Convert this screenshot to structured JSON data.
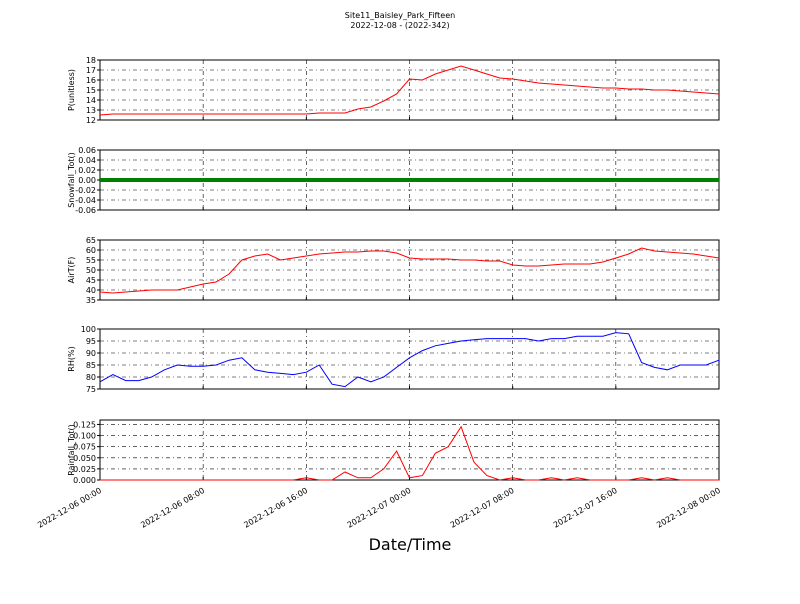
{
  "title": "Site11_Baisley_Park_Fifteen",
  "subtitle": "2022-12-08 - (2022-342)",
  "xlabel": "Date/Time",
  "x": [
    "2022-12-06 00:00",
    "2022-12-06 01:00",
    "2022-12-06 02:00",
    "2022-12-06 03:00",
    "2022-12-06 04:00",
    "2022-12-06 05:00",
    "2022-12-06 06:00",
    "2022-12-06 07:00",
    "2022-12-06 08:00",
    "2022-12-06 09:00",
    "2022-12-06 10:00",
    "2022-12-06 11:00",
    "2022-12-06 12:00",
    "2022-12-06 13:00",
    "2022-12-06 14:00",
    "2022-12-06 15:00",
    "2022-12-06 16:00",
    "2022-12-06 17:00",
    "2022-12-06 18:00",
    "2022-12-06 19:00",
    "2022-12-06 20:00",
    "2022-12-06 21:00",
    "2022-12-06 22:00",
    "2022-12-06 23:00",
    "2022-12-07 00:00",
    "2022-12-07 01:00",
    "2022-12-07 02:00",
    "2022-12-07 03:00",
    "2022-12-07 04:00",
    "2022-12-07 05:00",
    "2022-12-07 06:00",
    "2022-12-07 07:00",
    "2022-12-07 08:00",
    "2022-12-07 09:00",
    "2022-12-07 10:00",
    "2022-12-07 11:00",
    "2022-12-07 12:00",
    "2022-12-07 13:00",
    "2022-12-07 14:00",
    "2022-12-07 15:00",
    "2022-12-07 16:00",
    "2022-12-07 17:00",
    "2022-12-07 18:00",
    "2022-12-07 19:00",
    "2022-12-07 20:00",
    "2022-12-07 21:00",
    "2022-12-07 22:00",
    "2022-12-07 23:00",
    "2022-12-08 00:00"
  ],
  "xlim": [
    "2022-12-06 00:00",
    "2022-12-08 00:00"
  ],
  "xticks": [
    "2022-12-06 00:00",
    "2022-12-06 08:00",
    "2022-12-06 16:00",
    "2022-12-07 00:00",
    "2022-12-07 08:00",
    "2022-12-07 16:00",
    "2022-12-08 00:00"
  ],
  "grid": true,
  "chart_data": [
    {
      "type": "line",
      "ylabel": "P(unitless)",
      "ylim": [
        12,
        18
      ],
      "yticks": [
        12,
        13,
        14,
        15,
        16,
        17,
        18
      ],
      "series": [
        {
          "color": "#ff0000",
          "values": [
            12.5,
            12.6,
            12.6,
            12.6,
            12.6,
            12.6,
            12.6,
            12.6,
            12.6,
            12.6,
            12.6,
            12.6,
            12.6,
            12.6,
            12.6,
            12.6,
            12.6,
            12.7,
            12.7,
            12.7,
            13.1,
            13.3,
            13.9,
            14.6,
            16.1,
            16.0,
            16.6,
            17.0,
            17.4,
            17.0,
            16.6,
            16.2,
            16.1,
            15.9,
            15.7,
            15.6,
            15.5,
            15.4,
            15.3,
            15.2,
            15.2,
            15.1,
            15.1,
            15.0,
            15.0,
            14.9,
            14.8,
            14.7,
            14.6
          ]
        }
      ]
    },
    {
      "type": "line",
      "ylabel": "Snowfall_Tot()",
      "ylim": [
        -0.06,
        0.06
      ],
      "yticks": [
        -0.06,
        -0.04,
        -0.02,
        {
          "value": 0,
          "label": "0.00"
        },
        0.02,
        0.04,
        0.06
      ],
      "series": [
        {
          "color": "#008000",
          "values": [
            0,
            0,
            0,
            0,
            0,
            0,
            0,
            0,
            0,
            0,
            0,
            0,
            0,
            0,
            0,
            0,
            0,
            0,
            0,
            0,
            0,
            0,
            0,
            0,
            0,
            0,
            0,
            0,
            0,
            0,
            0,
            0,
            0,
            0,
            0,
            0,
            0,
            0,
            0,
            0,
            0,
            0,
            0,
            0,
            0,
            0,
            0,
            0,
            0
          ]
        }
      ]
    },
    {
      "type": "line",
      "ylabel": "AirT(F)",
      "ylim": [
        35,
        65
      ],
      "yticks": [
        35,
        40,
        45,
        50,
        55,
        60,
        65
      ],
      "series": [
        {
          "color": "#ff0000",
          "values": [
            39,
            38.5,
            39,
            39.5,
            40,
            40,
            40,
            41.5,
            43,
            44,
            48,
            55,
            57,
            58,
            55,
            56,
            57,
            58,
            58.5,
            59,
            59,
            59.5,
            59.5,
            58.5,
            56,
            55.5,
            55.5,
            55.5,
            55,
            55,
            54.5,
            54.5,
            52.5,
            52,
            52,
            52.5,
            53,
            53,
            53,
            54,
            56,
            58,
            61,
            59.5,
            59,
            58.5,
            58,
            57,
            56
          ]
        }
      ]
    },
    {
      "type": "line",
      "ylabel": "RH(%)",
      "ylim": [
        75,
        100
      ],
      "yticks": [
        75,
        80,
        85,
        90,
        95,
        100
      ],
      "series": [
        {
          "color": "#0000ff",
          "values": [
            78,
            81,
            78.5,
            78.5,
            80,
            83,
            85,
            84.5,
            84.5,
            85,
            87,
            88,
            83,
            82,
            81.5,
            81,
            82,
            85,
            77,
            76,
            80,
            78,
            80,
            84,
            88,
            91,
            93,
            94,
            95,
            95.5,
            96,
            96,
            96,
            96,
            95,
            96,
            96,
            97,
            97,
            97,
            98.5,
            98,
            86,
            84,
            83,
            85,
            85,
            85,
            87
          ]
        }
      ]
    },
    {
      "type": "line",
      "ylabel": "Rainfall_Tot()",
      "ylim": [
        0,
        0.135
      ],
      "yticks": [
        {
          "value": 0,
          "label": "0.000"
        },
        0.025,
        {
          "value": 0.05,
          "label": "0.050"
        },
        0.075,
        {
          "value": 0.1,
          "label": "0.100"
        },
        0.125
      ],
      "series": [
        {
          "color": "#ff0000",
          "values": [
            0,
            0,
            0,
            0,
            0,
            0,
            0,
            0,
            0,
            0,
            0,
            0,
            0,
            0,
            0,
            0,
            0.005,
            0,
            0,
            0.018,
            0.005,
            0.005,
            0.025,
            0.065,
            0.005,
            0.01,
            0.06,
            0.075,
            0.12,
            0.04,
            0.01,
            0,
            0.005,
            0,
            0,
            0.005,
            0,
            0.005,
            0,
            0,
            0,
            0,
            0.005,
            0,
            0.005,
            0,
            0,
            0,
            0
          ]
        }
      ]
    }
  ]
}
